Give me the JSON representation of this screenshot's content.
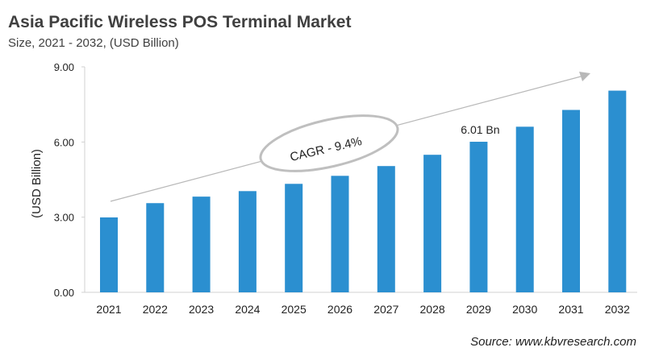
{
  "chart_data": {
    "type": "bar",
    "title": "Asia Pacific Wireless POS Terminal Market",
    "subtitle": "Size, 2021 - 2032, (USD Billion)",
    "ylabel": "(USD Billion)",
    "xlabel": "",
    "categories": [
      "2021",
      "2022",
      "2023",
      "2024",
      "2025",
      "2026",
      "2027",
      "2028",
      "2029",
      "2030",
      "2031",
      "2032"
    ],
    "values": [
      2.99,
      3.56,
      3.82,
      4.04,
      4.33,
      4.65,
      5.04,
      5.49,
      6.01,
      6.61,
      7.28,
      8.05
    ],
    "ylim": [
      0,
      9
    ],
    "yticks": [
      "0.00",
      "3.00",
      "6.00",
      "9.00"
    ],
    "grid": false,
    "bar_color": "#2b8fd0",
    "annotations": {
      "cagr": "CAGR - 9.4%",
      "data_label": "6.01 Bn",
      "data_label_category": "2029"
    },
    "source": "Source: www.kbvresearch.com"
  }
}
